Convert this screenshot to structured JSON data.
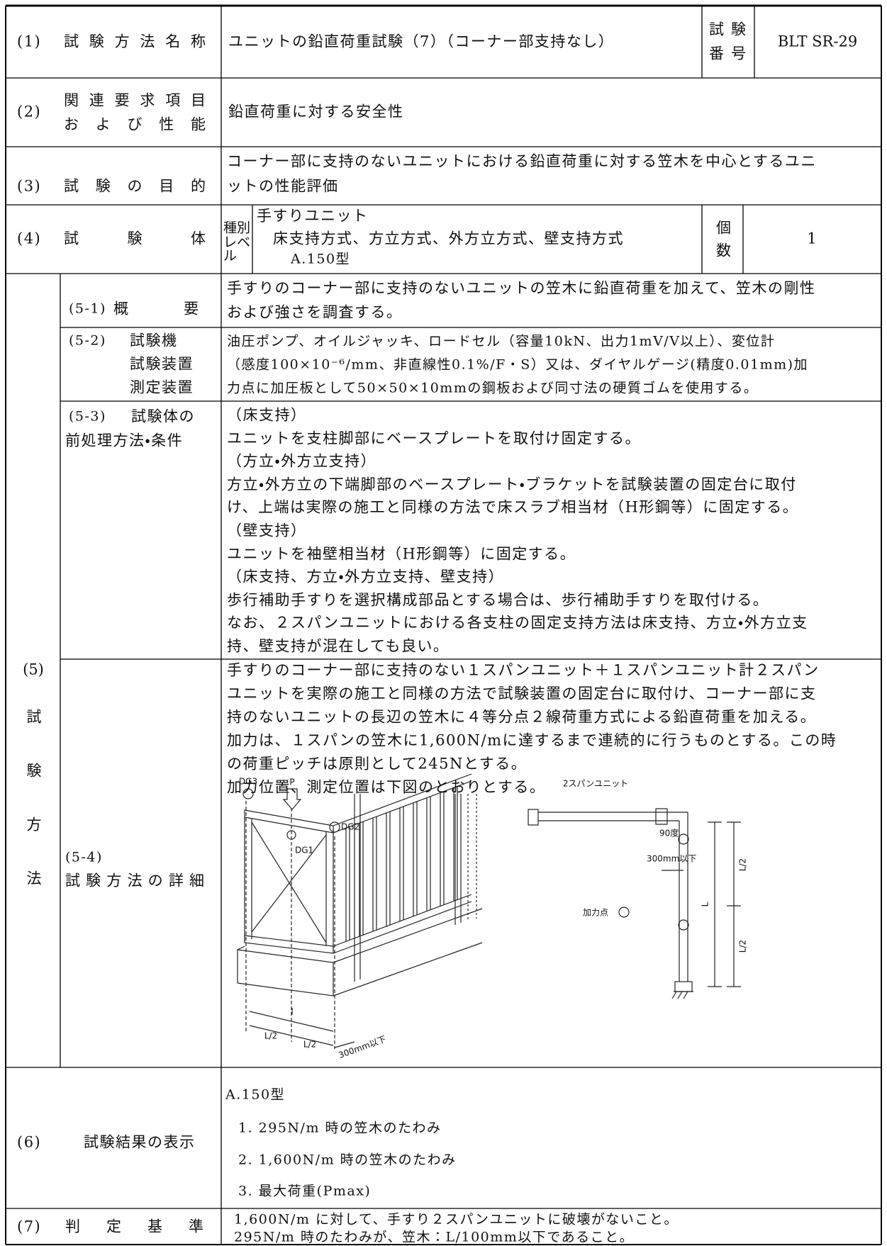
{
  "row1": {
    "num": "(1)",
    "label": "試験方法名称",
    "content": "ユニットの鉛直荷重試験（7）（コーナー部支持なし）",
    "id_label": [
      "試験",
      "番号"
    ],
    "id": "BLT SR-29"
  },
  "row2": {
    "num": "(2)",
    "label": [
      "関連要求項目",
      "および性能"
    ],
    "content": "鉛直荷重に対する安全性"
  },
  "row3": {
    "num": "(3)",
    "label": "試験の目的",
    "content": [
      "コーナー部に支持のないユニットにおける鉛直荷重に対する笠木を中心とするユニ",
      "ットの性能評価"
    ]
  },
  "row4": {
    "num": "(4)",
    "label": "試験体",
    "type_label": [
      "種別",
      "レベル"
    ],
    "content": [
      "手すりユニット",
      "床支持方式、方立方式、外方立方式、壁支持方式",
      "A.150型"
    ],
    "count_label": [
      "個",
      "数"
    ],
    "count": 1
  },
  "row5": {
    "num": "(5)",
    "label": "試験方法",
    "s1": {
      "num": "(5-1)",
      "label": "概要",
      "content": [
        "手すりのコーナー部に支持のないユニットの笠木に鉛直荷重を加えて、笠木の剛性",
        "および強さを調査する。"
      ]
    },
    "s2": {
      "num": "(5-2)",
      "label": [
        "試験機",
        "試験装置",
        "測定装置"
      ],
      "content": [
        "油圧ポンプ、オイルジャッキ、ロードセル（容量10kN、出力1mV/V以上）、変位計",
        "（感度100×10⁻⁶/mm、非直線性0.1%/F・S）又は、ダイヤルゲージ(精度0.01mm)加",
        "力点に加圧板として50×50×10mmの鋼板および同寸法の硬質ゴムを使用する。"
      ]
    },
    "s3": {
      "num": "(5-3)",
      "label": [
        "試験体の",
        "前処理方法・条件"
      ],
      "content": [
        "（床支持）",
        "ユニットを支柱脚部にベースプレートを取付け固定する。",
        "（方立・外方立支持）",
        "方立・外方立の下端脚部のベースプレート・ブラケットを試験装置の固定台に取付",
        "け、上端は実際の施工と同様の方法で床スラブ相当材（H形鋼等）に固定する。",
        "（壁支持）",
        "ユニットを袖壁相当材（H形鋼等）に固定する。",
        "（床支持、方立・外方立支持、壁支持）",
        "歩行補助手すりを選択構成部品とする場合は、歩行補助手すりを取付ける。",
        "なお、２スパンユニットにおける各支柱の固定支持方法は床支持、方立・外方立支",
        "持、壁支持が混在しても良い。"
      ]
    },
    "s4": {
      "num": "(5-4)",
      "label": "試験方法の詳細",
      "content": [
        "手すりのコーナー部に支持のない１スパンユニット＋１スパンユニット計２スパン",
        "ユニットを実際の施工と同様の方法で試験装置の固定台に取付け、コーナー部に支",
        "持のないユニットの長辺の笠木に４等分点２線荷重方式による鉛直荷重を加える。",
        "加力は、１スパンの笠木に1,600N/mに達するまで連続的に行うものとする。この時",
        "の荷重ピッチは原則として245Nとする。",
        "加力位置、測定位置は下図のとおりとする。"
      ],
      "figure_left": {
        "dg3": "DG3",
        "p": "P",
        "dg2": "DG2",
        "dg1": "DG1",
        "span": "l",
        "half_1": "L/2",
        "half_2": "L/2",
        "offset": "300mm以下"
      },
      "figure_right": {
        "title": "2スパンユニット",
        "angle": "90度",
        "offset": "300mm以下",
        "half_1": "L/2",
        "span": "L",
        "half_2": "L/2",
        "load_point": "加力点"
      }
    }
  },
  "row6": {
    "num": "(6)",
    "label": "試験結果の表示",
    "content": [
      "A.150型",
      "1. 295N/m 時の笠木のたわみ",
      "2. 1,600N/m 時の笠木のたわみ",
      "3. 最大荷重(Pmax)"
    ]
  },
  "row7": {
    "num": "(7)",
    "label": "判定基準",
    "content": [
      "1,600N/m に対して、手すり２スパンユニットに破壊がないこと。",
      "295N/m 時のたわみが、笠木：L/100mm以下であること。"
    ]
  }
}
